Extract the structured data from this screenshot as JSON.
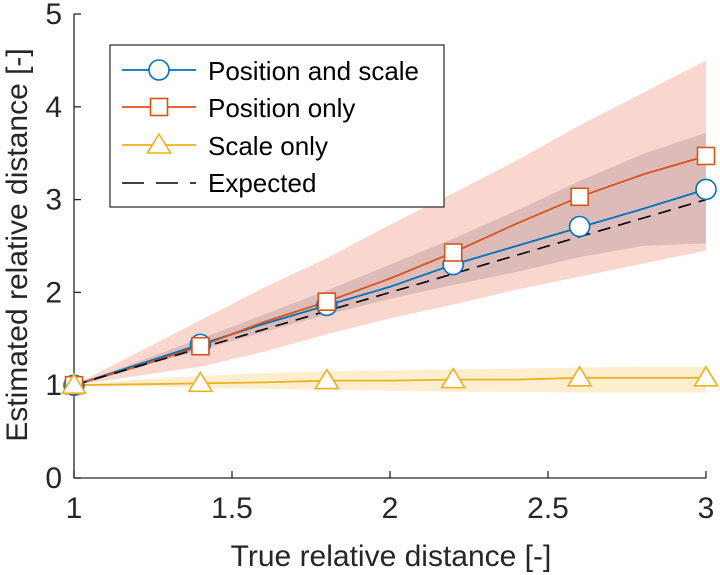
{
  "chart_data": {
    "type": "line",
    "title": "",
    "xlabel": "True relative distance [-]",
    "ylabel": "Estimated relative distance [-]",
    "xlim": [
      1,
      3
    ],
    "ylim": [
      0,
      5
    ],
    "xticks": [
      1,
      1.5,
      2,
      2.5,
      3
    ],
    "xtick_labels": [
      "1",
      "1.5",
      "2",
      "2.5",
      "3"
    ],
    "yticks": [
      0,
      1,
      2,
      3,
      4,
      5
    ],
    "ytick_labels": [
      "0",
      "1",
      "2",
      "3",
      "4",
      "5"
    ],
    "grid": false,
    "legend_position": "top-left",
    "series": [
      {
        "name": "Position and scale",
        "color": "#0072BD",
        "marker": "circle",
        "line_x": [
          1,
          1.2,
          1.4,
          1.6,
          1.8,
          2.0,
          2.2,
          2.4,
          2.6,
          2.8,
          3.0
        ],
        "line_y": [
          1.0,
          1.22,
          1.44,
          1.66,
          1.86,
          2.06,
          2.3,
          2.5,
          2.7,
          2.9,
          3.11
        ],
        "marker_x": [
          1,
          1.4,
          1.8,
          2.2,
          2.6,
          3.0
        ],
        "marker_y": [
          1.0,
          1.44,
          1.86,
          2.3,
          2.71,
          3.11
        ],
        "band_lower": [
          1.0,
          1.19,
          1.38,
          1.57,
          1.76,
          1.93,
          2.08,
          2.22,
          2.38,
          2.5,
          2.53
        ],
        "band_upper": [
          1.0,
          1.25,
          1.5,
          1.76,
          2.02,
          2.3,
          2.58,
          2.88,
          3.2,
          3.49,
          3.72
        ],
        "band_color": "#8a8fa8"
      },
      {
        "name": "Position only",
        "color": "#D95319",
        "marker": "square",
        "line_x": [
          1,
          1.2,
          1.4,
          1.6,
          1.8,
          2.0,
          2.2,
          2.4,
          2.6,
          2.8,
          3.0
        ],
        "line_y": [
          1.0,
          1.2,
          1.42,
          1.68,
          1.9,
          2.15,
          2.43,
          2.74,
          3.03,
          3.27,
          3.47
        ],
        "marker_x": [
          1,
          1.4,
          1.8,
          2.2,
          2.6,
          3.0
        ],
        "marker_y": [
          1.0,
          1.42,
          1.9,
          2.43,
          3.03,
          3.47
        ],
        "band_lower": [
          1.0,
          1.1,
          1.2,
          1.36,
          1.55,
          1.72,
          1.87,
          2.03,
          2.17,
          2.31,
          2.45
        ],
        "band_upper": [
          1.0,
          1.35,
          1.7,
          2.05,
          2.37,
          2.73,
          3.07,
          3.42,
          3.8,
          4.15,
          4.5
        ],
        "band_color": "#f4b7a6"
      },
      {
        "name": "Scale only",
        "color": "#EDB120",
        "marker": "triangle",
        "line_x": [
          1,
          1.2,
          1.4,
          1.6,
          1.8,
          2.0,
          2.2,
          2.4,
          2.6,
          2.8,
          3.0
        ],
        "line_y": [
          1.0,
          1.01,
          1.02,
          1.03,
          1.05,
          1.05,
          1.06,
          1.06,
          1.08,
          1.08,
          1.08
        ],
        "marker_x": [
          1,
          1.4,
          1.8,
          2.2,
          2.6,
          3.0
        ],
        "marker_y": [
          1.0,
          1.02,
          1.05,
          1.06,
          1.08,
          1.08
        ],
        "band_lower": [
          1.0,
          0.99,
          0.97,
          0.96,
          0.95,
          0.94,
          0.93,
          0.93,
          0.92,
          0.92,
          0.92
        ],
        "band_upper": [
          1.0,
          1.06,
          1.1,
          1.13,
          1.15,
          1.16,
          1.17,
          1.18,
          1.19,
          1.2,
          1.2
        ],
        "band_color": "#f9e0a8"
      },
      {
        "name": "Expected",
        "color": "#000000",
        "marker": "none",
        "dashed": true,
        "line_x": [
          1,
          3
        ],
        "line_y": [
          1,
          3
        ]
      }
    ]
  }
}
